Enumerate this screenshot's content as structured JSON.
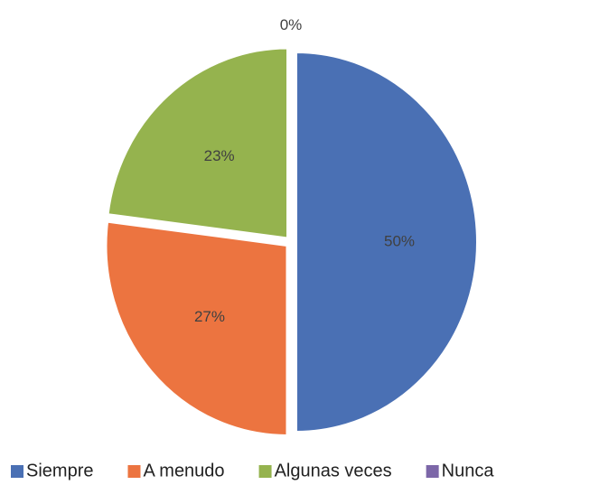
{
  "chart_data": {
    "type": "pie",
    "categories": [
      "Siempre",
      "A menudo",
      "Algunas veces",
      "Nunca"
    ],
    "values": [
      50,
      27,
      23,
      0
    ],
    "value_labels": [
      "50%",
      "27%",
      "23%",
      "0%"
    ],
    "colors": [
      "#4a70b4",
      "#ec7440",
      "#95b34e",
      "#7c67a8"
    ],
    "legend": "bottom"
  }
}
